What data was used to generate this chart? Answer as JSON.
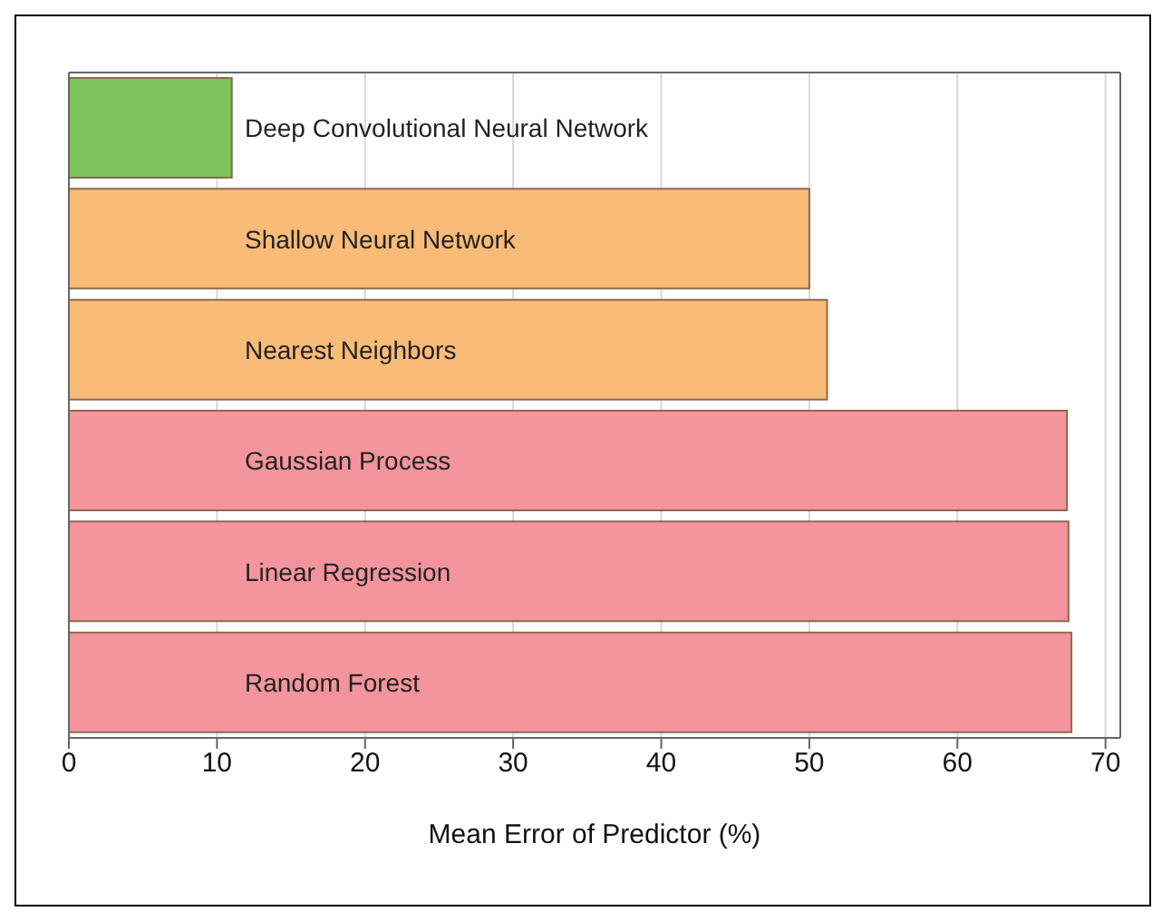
{
  "chart_data": {
    "type": "bar",
    "orientation": "horizontal",
    "xlabel": "Mean Error of Predictor (%)",
    "categories": [
      "Deep Convolutional Neural Network",
      "Shallow Neural Network",
      "Nearest Neighbors",
      "Gaussian Process",
      "Linear Regression",
      "Random Forest"
    ],
    "values": [
      11,
      50,
      51.2,
      67.4,
      67.5,
      67.7
    ],
    "colors": [
      "#7dc35b",
      "#f9bb78",
      "#f9bb78",
      "#f4949c",
      "#f4949c",
      "#f4949c"
    ],
    "xlim": [
      0,
      71
    ],
    "xticks": [
      0,
      10,
      20,
      30,
      40,
      50,
      60,
      70
    ],
    "grid": "x"
  }
}
